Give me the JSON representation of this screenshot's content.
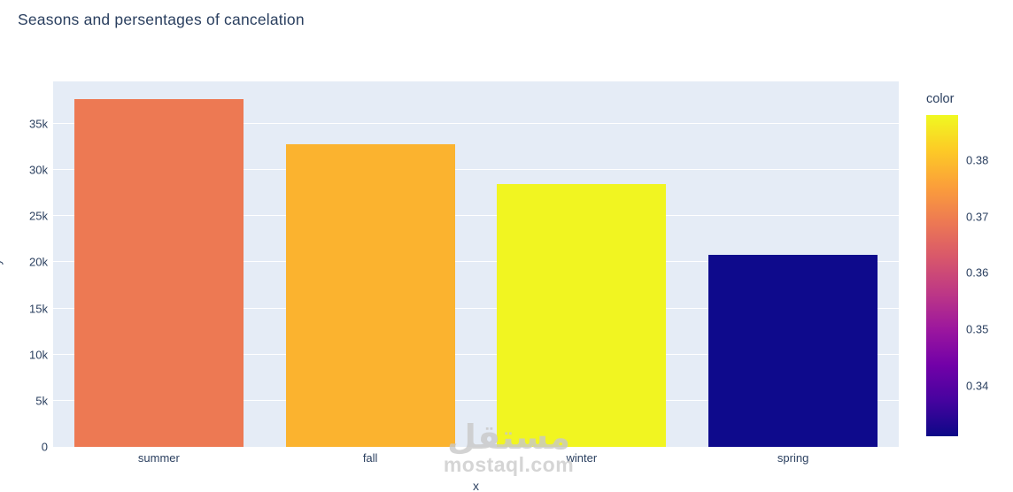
{
  "colors": {
    "plot_background": "#e5ecf6",
    "grid": "#ffffff",
    "text": "#2a3f5f",
    "colorscale_name": "Plasma"
  },
  "watermark": {
    "line1": "مستقل",
    "line2": "mostaql.com"
  },
  "chart_data": {
    "type": "bar",
    "title": "Seasons and persentages of cancelation",
    "xlabel": "x",
    "ylabel": "y",
    "categories": [
      "summer",
      "fall",
      "winter",
      "spring"
    ],
    "values": [
      37700,
      32800,
      28500,
      20800
    ],
    "color_values": [
      0.368,
      0.378,
      0.388,
      0.331
    ],
    "bar_colors": [
      "#ed7953",
      "#fbb32f",
      "#f1f521",
      "#0e0a8c"
    ],
    "ylim": [
      0,
      39600
    ],
    "yticks": [
      0,
      5000,
      10000,
      15000,
      20000,
      25000,
      30000,
      35000
    ],
    "ytick_labels": [
      "0",
      "5k",
      "10k",
      "15k",
      "20k",
      "25k",
      "30k",
      "35k"
    ],
    "grid": true,
    "legend_position": "none",
    "colorbar": {
      "title": "color",
      "cmin": 0.331,
      "cmax": 0.388,
      "ticks": [
        0.38,
        0.37,
        0.36,
        0.35,
        0.34
      ],
      "tick_labels": [
        "0.38",
        "0.37",
        "0.36",
        "0.35",
        "0.34"
      ]
    }
  }
}
